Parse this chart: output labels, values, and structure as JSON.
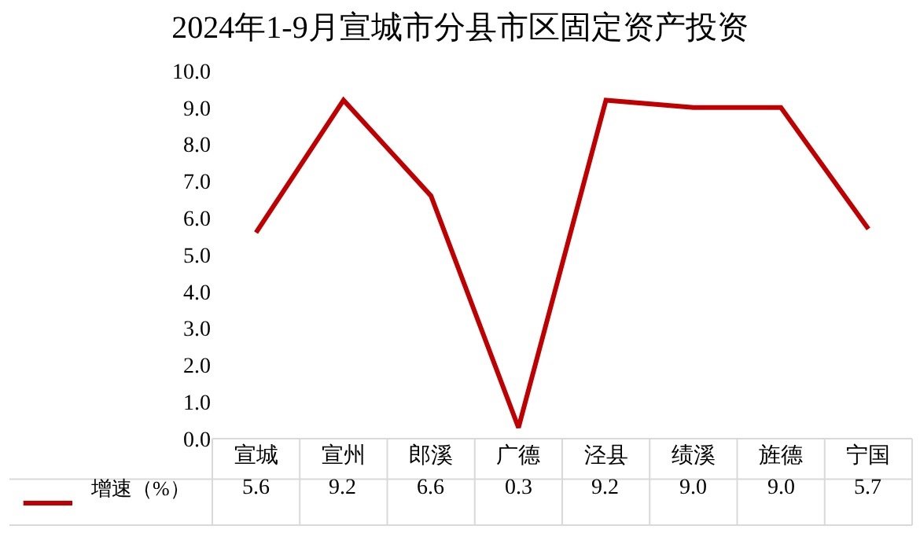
{
  "chart_data": {
    "type": "line",
    "title": "2024年1-9月宣城市分县市区固定资产投资",
    "categories": [
      "宣城",
      "宣州",
      "郎溪",
      "广德",
      "泾县",
      "绩溪",
      "旌德",
      "宁国"
    ],
    "series": [
      {
        "name": "增速（%）",
        "color": "#c00000",
        "values": [
          5.6,
          9.2,
          6.6,
          0.3,
          9.2,
          9.0,
          9.0,
          5.7
        ],
        "value_labels": [
          "5.6",
          "9.2",
          "6.6",
          "0.3",
          "9.2",
          "9.0",
          "9.0",
          "5.7"
        ]
      }
    ],
    "ylim": [
      0,
      10
    ],
    "yticks": [
      {
        "value": 0,
        "label": "0.0"
      },
      {
        "value": 1,
        "label": "1.0"
      },
      {
        "value": 2,
        "label": "2.0"
      },
      {
        "value": 3,
        "label": "3.0"
      },
      {
        "value": 4,
        "label": "4.0"
      },
      {
        "value": 5,
        "label": "5.0"
      },
      {
        "value": 6,
        "label": "6.0"
      },
      {
        "value": 7,
        "label": "7.0"
      },
      {
        "value": 8,
        "label": "8.0"
      },
      {
        "value": 9,
        "label": "9.0"
      },
      {
        "value": 10,
        "label": "10.0"
      }
    ],
    "marker": "none",
    "line_style": "solid",
    "legend": "bottom left"
  }
}
